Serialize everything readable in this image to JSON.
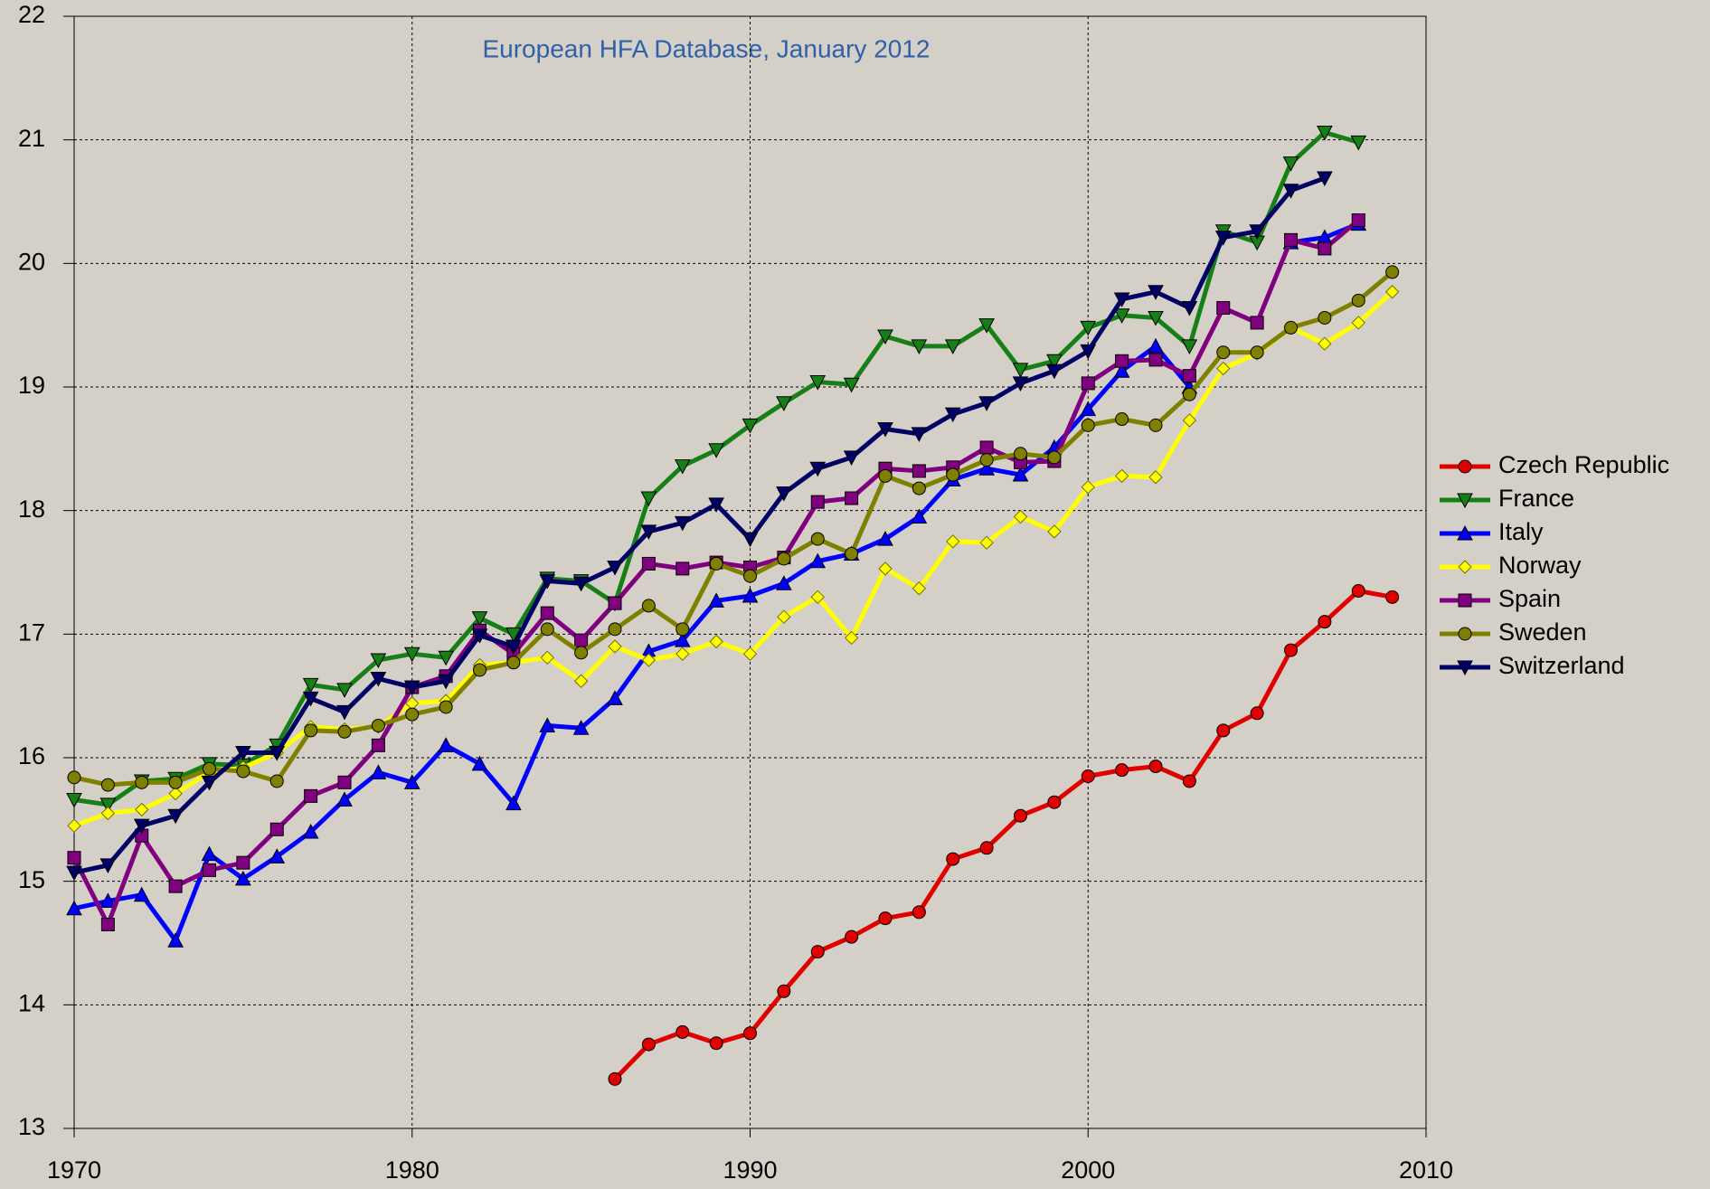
{
  "chart_data": {
    "type": "line",
    "subtitle": "European HFA Database, January 2012",
    "x": [
      1970,
      1971,
      1972,
      1973,
      1974,
      1975,
      1976,
      1977,
      1978,
      1979,
      1980,
      1981,
      1982,
      1983,
      1984,
      1985,
      1986,
      1987,
      1988,
      1989,
      1990,
      1991,
      1992,
      1993,
      1994,
      1995,
      1996,
      1997,
      1998,
      1999,
      2000,
      2001,
      2002,
      2003,
      2004,
      2005,
      2006,
      2007,
      2008,
      2009
    ],
    "series": [
      {
        "name": "Czech Republic",
        "color": "#e00000",
        "marker": "circle",
        "values": [
          null,
          null,
          null,
          null,
          null,
          null,
          null,
          null,
          null,
          null,
          null,
          null,
          null,
          null,
          null,
          null,
          13.4,
          13.68,
          13.78,
          13.69,
          13.77,
          14.11,
          14.43,
          14.55,
          14.7,
          14.75,
          15.18,
          15.27,
          15.53,
          15.64,
          15.85,
          15.9,
          15.93,
          15.81,
          16.22,
          16.36,
          16.87,
          17.1,
          17.35,
          17.3
        ]
      },
      {
        "name": "France",
        "color": "#168016",
        "marker": "triangle-down",
        "values": [
          15.66,
          15.62,
          15.81,
          15.83,
          15.95,
          15.94,
          16.1,
          16.59,
          16.55,
          16.79,
          16.84,
          16.81,
          17.13,
          17.0,
          17.45,
          17.43,
          17.25,
          18.1,
          18.36,
          18.49,
          18.69,
          18.87,
          19.04,
          19.02,
          19.41,
          19.33,
          19.33,
          19.5,
          19.14,
          19.21,
          19.48,
          19.58,
          19.56,
          19.33,
          20.26,
          20.17,
          20.81,
          21.06,
          20.98,
          null
        ]
      },
      {
        "name": "Italy",
        "color": "#0000ff",
        "marker": "triangle-up",
        "values": [
          14.78,
          14.84,
          14.89,
          14.52,
          15.22,
          15.02,
          15.2,
          15.4,
          15.66,
          15.88,
          15.8,
          16.1,
          15.95,
          15.63,
          16.26,
          16.24,
          16.48,
          16.86,
          16.95,
          17.27,
          17.31,
          17.41,
          17.59,
          17.65,
          17.77,
          17.95,
          18.25,
          18.34,
          18.29,
          18.51,
          18.82,
          19.13,
          19.33,
          19.0,
          null,
          null,
          20.17,
          20.21,
          20.32,
          null
        ]
      },
      {
        "name": "Norway",
        "color": "#ffff00",
        "marker": "diamond",
        "values": [
          15.45,
          15.55,
          15.58,
          15.71,
          15.88,
          15.92,
          16.04,
          16.25,
          16.23,
          16.25,
          16.44,
          16.46,
          16.75,
          16.77,
          16.81,
          16.62,
          16.9,
          16.79,
          16.84,
          16.94,
          16.84,
          17.14,
          17.3,
          16.97,
          17.53,
          17.37,
          17.75,
          17.74,
          17.95,
          17.83,
          18.19,
          18.28,
          18.27,
          18.73,
          19.15,
          19.27,
          19.48,
          19.35,
          19.52,
          19.77
        ]
      },
      {
        "name": "Spain",
        "color": "#800080",
        "marker": "square",
        "values": [
          15.19,
          14.65,
          15.37,
          14.96,
          15.09,
          15.15,
          15.42,
          15.69,
          15.8,
          16.1,
          16.57,
          16.66,
          17.03,
          16.84,
          17.17,
          16.95,
          17.25,
          17.57,
          17.53,
          17.58,
          17.54,
          17.62,
          18.07,
          18.1,
          18.34,
          18.32,
          18.35,
          18.51,
          18.39,
          18.4,
          19.03,
          19.21,
          19.22,
          19.09,
          19.64,
          19.52,
          20.19,
          20.12,
          20.35,
          null
        ]
      },
      {
        "name": "Sweden",
        "color": "#808000",
        "marker": "circle",
        "values": [
          15.84,
          15.78,
          15.8,
          15.8,
          15.91,
          15.89,
          15.81,
          16.22,
          16.21,
          16.26,
          16.35,
          16.41,
          16.71,
          16.77,
          17.04,
          16.85,
          17.04,
          17.23,
          17.04,
          17.57,
          17.47,
          17.61,
          17.77,
          17.65,
          18.28,
          18.18,
          18.29,
          18.41,
          18.46,
          18.43,
          18.69,
          18.74,
          18.69,
          18.94,
          19.28,
          19.28,
          19.48,
          19.56,
          19.7,
          19.93
        ]
      },
      {
        "name": "Switzerland",
        "color": "#000066",
        "marker": "triangle-down",
        "values": [
          15.07,
          15.13,
          15.45,
          15.53,
          15.8,
          16.04,
          16.04,
          16.48,
          16.37,
          16.64,
          16.57,
          16.62,
          16.99,
          16.9,
          17.43,
          17.41,
          17.54,
          17.83,
          17.9,
          18.05,
          17.77,
          18.14,
          18.34,
          18.43,
          18.66,
          18.62,
          18.78,
          18.87,
          19.03,
          19.13,
          19.29,
          19.71,
          19.77,
          19.64,
          20.21,
          20.26,
          20.59,
          20.69,
          null,
          null
        ]
      }
    ],
    "xlim": [
      1970,
      2010
    ],
    "xticks": [
      1970,
      1980,
      1990,
      2000,
      2010
    ],
    "ylim": [
      13,
      22
    ],
    "yticks": [
      13,
      14,
      15,
      16,
      17,
      18,
      19,
      20,
      21,
      22
    ],
    "grid": true,
    "legend": "right"
  }
}
